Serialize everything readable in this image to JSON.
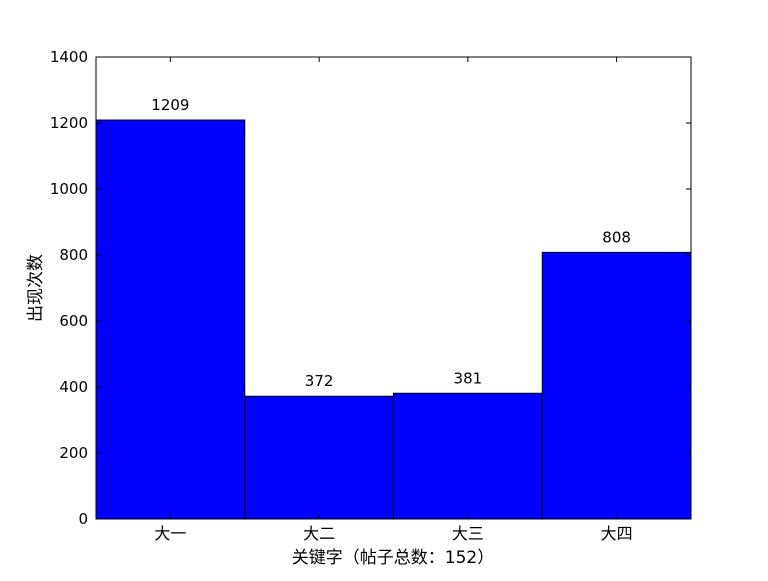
{
  "chart_data": {
    "type": "bar",
    "title": "",
    "xlabel": "关键字（帖子总数：152）",
    "ylabel": "出现次数",
    "categories": [
      "大一",
      "大二",
      "大三",
      "大四"
    ],
    "values": [
      1209,
      372,
      381,
      808
    ],
    "data_labels": [
      "1209",
      "372",
      "381",
      "808"
    ],
    "ylim": [
      0,
      1400
    ],
    "yticks": [
      0,
      200,
      400,
      600,
      800,
      1000,
      1200,
      1400
    ],
    "bar_color": "#0000ff",
    "edge_color": "#000000",
    "grid": false,
    "legend": "none"
  }
}
